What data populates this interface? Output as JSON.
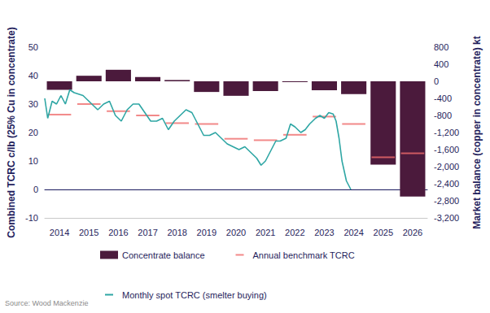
{
  "chart_data": {
    "type": "bar",
    "y_label": "Combined TCRC c/lb (25% Cu in concentrate)",
    "y2_label": "Market balance (copper in concentrate) kt",
    "source": "Source: Wood Mackenzie",
    "xlim": [
      2014,
      2027
    ],
    "xticks": [
      {
        "value": 2014.5,
        "label": "2014"
      },
      {
        "value": 2015.5,
        "label": "2015"
      },
      {
        "value": 2016.5,
        "label": "2016"
      },
      {
        "value": 2017.5,
        "label": "2017"
      },
      {
        "value": 2018.5,
        "label": "2018"
      },
      {
        "value": 2019.5,
        "label": "2019"
      },
      {
        "value": 2020.5,
        "label": "2020"
      },
      {
        "value": 2021.5,
        "label": "2021"
      },
      {
        "value": 2022.5,
        "label": "2022"
      },
      {
        "value": 2023.5,
        "label": "2023"
      },
      {
        "value": 2024.5,
        "label": "2024"
      },
      {
        "value": 2025.5,
        "label": "2025"
      },
      {
        "value": 2026.5,
        "label": "2026"
      }
    ],
    "ylim": [
      -10,
      50
    ],
    "yticks": [
      -10,
      0,
      10,
      20,
      30,
      40,
      50
    ],
    "y2lim": [
      -3200,
      800
    ],
    "y2ticks": [
      {
        "value": -3200,
        "label": "-3,200"
      },
      {
        "value": -2800,
        "label": "-2,800"
      },
      {
        "value": -2400,
        "label": "-2,400"
      },
      {
        "value": -2000,
        "label": "-2,000"
      },
      {
        "value": -1600,
        "label": "-1,600"
      },
      {
        "value": -1200,
        "label": "-1,200"
      },
      -800,
      -400,
      0,
      400,
      800
    ],
    "grid": false,
    "legend": "bottom",
    "series": [
      {
        "name": "Concentrate balance",
        "type": "bar",
        "axis": "y2",
        "color": "#4b1a3c",
        "x": [
          2014.5,
          2015.5,
          2016.5,
          2017.5,
          2018.5,
          2019.5,
          2020.5,
          2021.5,
          2022.5,
          2023.5,
          2024.5,
          2025.5,
          2026.5
        ],
        "values": [
          -200,
          130,
          270,
          100,
          30,
          -250,
          -340,
          -230,
          -20,
          -210,
          -300,
          -1950,
          -2700
        ]
      },
      {
        "name": "Annual benchmark TCRC",
        "type": "scatter",
        "marker": "dash",
        "color": "#ef6b6b",
        "x": [
          2014.5,
          2015.5,
          2016.5,
          2017.5,
          2018.5,
          2019.5,
          2020.5,
          2021.5,
          2022.5,
          2023.5,
          2024.5,
          2025.5,
          2026.5
        ],
        "values": [
          26.3,
          30,
          27.5,
          26,
          23.3,
          23,
          17.8,
          17.3,
          19.2,
          25.6,
          23,
          11.3,
          12.7
        ]
      },
      {
        "name": "Monthly spot TCRC (smelter buying)",
        "type": "line",
        "color": "#2ea6a4",
        "x": [
          2014.0,
          2014.1,
          2014.25,
          2014.4,
          2014.55,
          2014.7,
          2014.85,
          2015.0,
          2015.3,
          2015.6,
          2015.8,
          2016.0,
          2016.2,
          2016.4,
          2016.6,
          2016.8,
          2017.0,
          2017.2,
          2017.4,
          2017.6,
          2017.8,
          2018.0,
          2018.2,
          2018.4,
          2018.6,
          2018.8,
          2019.0,
          2019.2,
          2019.4,
          2019.6,
          2019.8,
          2020.0,
          2020.2,
          2020.4,
          2020.6,
          2020.8,
          2021.0,
          2021.2,
          2021.35,
          2021.5,
          2021.7,
          2021.85,
          2022.0,
          2022.2,
          2022.35,
          2022.5,
          2022.7,
          2022.85,
          2023.0,
          2023.2,
          2023.35,
          2023.5,
          2023.65,
          2023.8,
          2023.9,
          2024.0,
          2024.1,
          2024.25,
          2024.4
        ],
        "values": [
          32,
          25,
          31,
          30,
          33,
          30,
          35,
          34,
          33,
          30,
          28,
          30,
          31,
          26,
          24,
          28,
          30,
          30,
          27,
          24,
          24,
          25,
          21,
          24,
          26,
          28,
          27,
          23,
          19,
          19,
          20,
          18,
          16,
          15,
          14,
          15,
          13,
          11,
          8.5,
          10,
          14,
          17,
          17,
          18,
          23,
          22,
          20,
          21,
          23,
          25,
          26,
          25,
          27,
          26.5,
          24,
          18,
          10,
          3,
          0
        ]
      }
    ]
  }
}
